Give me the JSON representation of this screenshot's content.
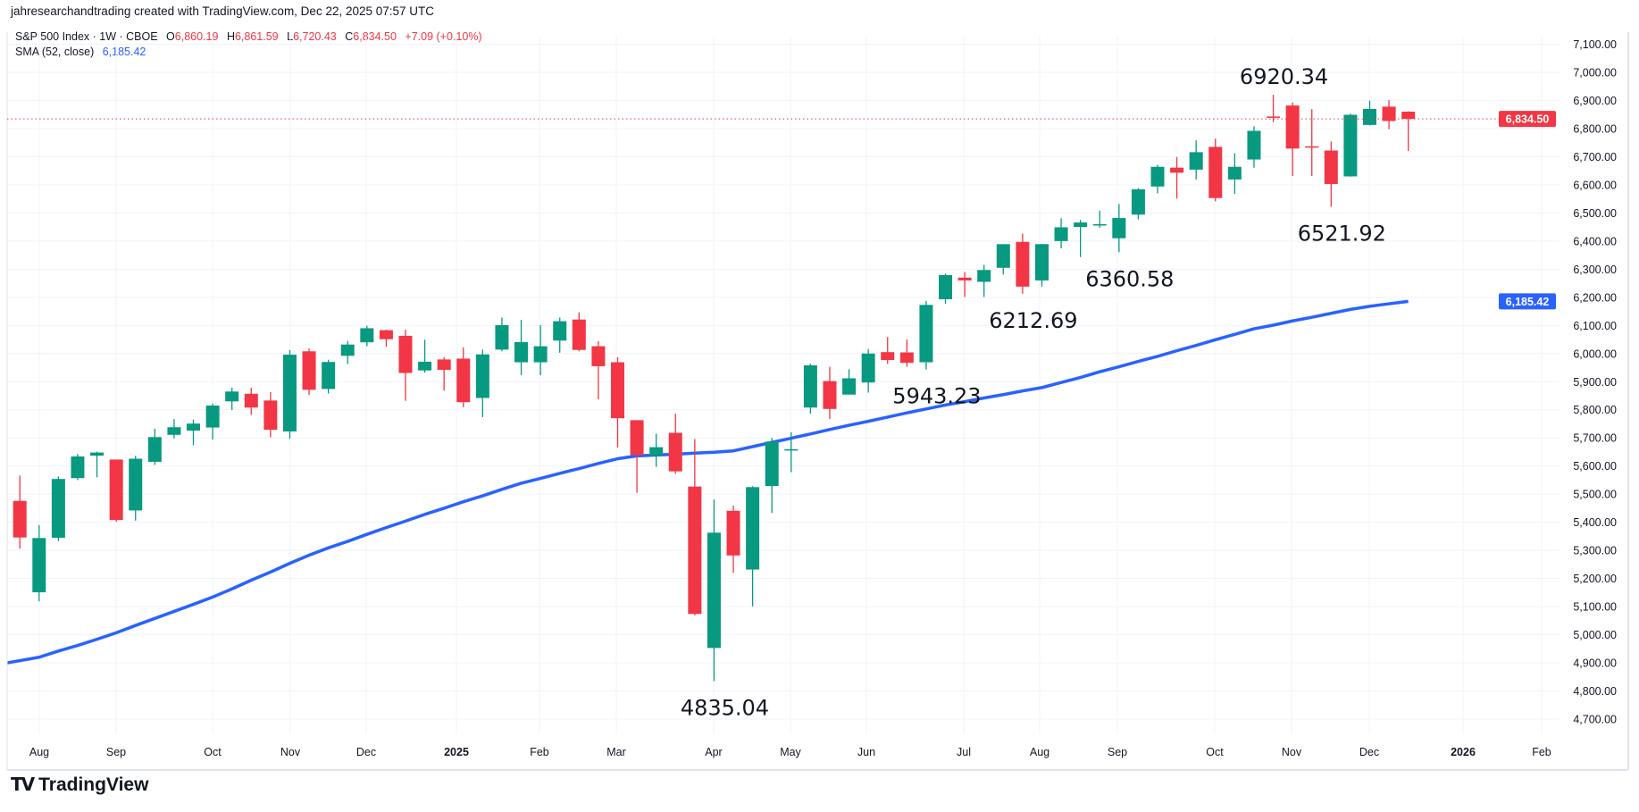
{
  "header": {
    "credit": "jahresearchandtrading created with TradingView.com, Dec 22, 2025 07:57 UTC",
    "symbol": "S&P 500 Index · 1W · CBOE",
    "ohlc": {
      "o_label": "O",
      "o": "6,860.19",
      "h_label": "H",
      "h": "6,861.59",
      "l_label": "L",
      "l": "6,720.43",
      "c_label": "C",
      "c": "6,834.50",
      "change": "+7.09 (+0.10%)"
    },
    "sma_label": "SMA (52, close)",
    "sma_value": "6,185.42"
  },
  "logo": {
    "text": "TradingView",
    "mark": "TV"
  },
  "colors": {
    "up": "#089981",
    "down": "#f23645",
    "sma": "#2962ff",
    "last_price": "#f23645"
  },
  "chart_data": {
    "type": "candlestick",
    "timeframe": "1W",
    "ylim": [
      4650,
      7150
    ],
    "grid": true,
    "y_ticks": [
      "7,100.00",
      "7,000.00",
      "6,900.00",
      "6,800.00",
      "6,700.00",
      "6,600.00",
      "6,500.00",
      "6,400.00",
      "6,300.00",
      "6,200.00",
      "6,100.00",
      "6,000.00",
      "5,900.00",
      "5,800.00",
      "5,700.00",
      "5,600.00",
      "5,500.00",
      "5,400.00",
      "5,300.00",
      "5,200.00",
      "5,100.00",
      "5,000.00",
      "4,900.00",
      "4,800.00",
      "4,700.00"
    ],
    "x_ticks": [
      "Aug",
      "Sep",
      "Oct",
      "Nov",
      "Dec",
      "2025",
      "Feb",
      "Mar",
      "Apr",
      "May",
      "Jun",
      "Jul",
      "Aug",
      "Sep",
      "Oct",
      "Nov",
      "Dec",
      "2026",
      "Feb"
    ],
    "first_week": "2024-07-29",
    "candles": [
      [
        5476,
        5566,
        5306,
        5346
      ],
      [
        5151,
        5390,
        5119,
        5344
      ],
      [
        5345,
        5563,
        5333,
        5554
      ],
      [
        5557,
        5643,
        5550,
        5634
      ],
      [
        5637,
        5651,
        5560,
        5648
      ],
      [
        5623,
        5623,
        5402,
        5408
      ],
      [
        5442,
        5636,
        5406,
        5626
      ],
      [
        5615,
        5733,
        5604,
        5703
      ],
      [
        5711,
        5767,
        5698,
        5738
      ],
      [
        5726,
        5765,
        5674,
        5751
      ],
      [
        5737,
        5822,
        5694,
        5815
      ],
      [
        5830,
        5879,
        5799,
        5865
      ],
      [
        5857,
        5878,
        5782,
        5808
      ],
      [
        5833,
        5863,
        5702,
        5729
      ],
      [
        5723,
        6012,
        5697,
        5996
      ],
      [
        6008,
        6018,
        5853,
        5871
      ],
      [
        5874,
        5978,
        5858,
        5970
      ],
      [
        5992,
        6045,
        5963,
        6032
      ],
      [
        6040,
        6099,
        6026,
        6090
      ],
      [
        6083,
        6085,
        6024,
        6051
      ],
      [
        6063,
        6085,
        5832,
        5931
      ],
      [
        5940,
        6049,
        5932,
        5971
      ],
      [
        5979,
        5987,
        5868,
        5942
      ],
      [
        5982,
        6022,
        5809,
        5827
      ],
      [
        5842,
        6014,
        5774,
        5997
      ],
      [
        6014,
        6128,
        6008,
        6101
      ],
      [
        5969,
        6120,
        5923,
        6041
      ],
      [
        5969,
        6101,
        5923,
        6026
      ],
      [
        6046,
        6128,
        6003,
        6115
      ],
      [
        6121,
        6147,
        6008,
        6013
      ],
      [
        6026,
        6044,
        5837,
        5955
      ],
      [
        5969,
        5987,
        5666,
        5770
      ],
      [
        5763,
        5763,
        5505,
        5639
      ],
      [
        5637,
        5715,
        5597,
        5667
      ],
      [
        5718,
        5786,
        5572,
        5581
      ],
      [
        5527,
        5696,
        5069,
        5074
      ],
      [
        4953,
        5481,
        4835.04,
        5363
      ],
      [
        5441,
        5459,
        5220,
        5282
      ],
      [
        5232,
        5528,
        5101,
        5525
      ],
      [
        5529,
        5700,
        5433,
        5687
      ],
      [
        5655,
        5720,
        5578,
        5660
      ],
      [
        5808,
        5964,
        5786,
        5958
      ],
      [
        5902,
        5953,
        5767,
        5803
      ],
      [
        5854,
        5944,
        5856,
        5912
      ],
      [
        5897,
        6016,
        5861,
        6000
      ],
      [
        6005,
        6059,
        5963,
        5977
      ],
      [
        6004,
        6050,
        5953,
        5967
      ],
      [
        5969,
        6187,
        5943.23,
        6173
      ],
      [
        6193,
        6284,
        6177,
        6279
      ],
      [
        6270,
        6290,
        6201,
        6260
      ],
      [
        6255,
        6315,
        6201,
        6297
      ],
      [
        6305,
        6389,
        6281,
        6389
      ],
      [
        6397,
        6427,
        6212.69,
        6238
      ],
      [
        6260,
        6390,
        6238,
        6389
      ],
      [
        6400,
        6481,
        6374,
        6449
      ],
      [
        6450,
        6475,
        6343,
        6466
      ],
      [
        6457,
        6508,
        6447,
        6460
      ],
      [
        6410,
        6532,
        6360.58,
        6482
      ],
      [
        6494,
        6588,
        6477,
        6584
      ],
      [
        6594,
        6671,
        6570,
        6664
      ],
      [
        6661,
        6699,
        6551,
        6643
      ],
      [
        6654,
        6758,
        6619,
        6716
      ],
      [
        6735,
        6764,
        6541,
        6553
      ],
      [
        6619,
        6712,
        6568,
        6664
      ],
      [
        6690,
        6808,
        6661,
        6792
      ],
      [
        6843,
        6920.34,
        6823,
        6840
      ],
      [
        6882,
        6893,
        6631,
        6729
      ],
      [
        6737,
        6869,
        6631,
        6734
      ],
      [
        6722,
        6754,
        6521.92,
        6603
      ],
      [
        6630,
        6853,
        6629,
        6849
      ],
      [
        6813,
        6899,
        6811,
        6870
      ],
      [
        6878,
        6901,
        6798,
        6827
      ],
      [
        6860.19,
        6861.59,
        6720.43,
        6834.5
      ]
    ],
    "sma": {
      "name": "SMA (52, close)",
      "values": [
        4900,
        4920,
        4942,
        4962,
        4984,
        5007,
        5033,
        5058,
        5083,
        5108,
        5134,
        5163,
        5194,
        5223,
        5254,
        5283,
        5309,
        5332,
        5357,
        5381,
        5404,
        5428,
        5450,
        5473,
        5494,
        5517,
        5539,
        5556,
        5574,
        5591,
        5609,
        5626,
        5636,
        5639,
        5642,
        5646,
        5649,
        5654,
        5669,
        5684,
        5699,
        5714,
        5730,
        5745,
        5759,
        5774,
        5789,
        5803,
        5817,
        5829,
        5842,
        5854,
        5867,
        5879,
        5897,
        5915,
        5935,
        5953,
        5972,
        5990,
        6010,
        6029,
        6049,
        6068,
        6088,
        6101,
        6116,
        6129,
        6143,
        6157,
        6168,
        6177,
        6185.42
      ]
    },
    "last_price": {
      "value": 6834.5,
      "label": "6,834.50"
    },
    "sma_last": {
      "value": 6185.42,
      "label": "6,185.42"
    },
    "annotations": [
      {
        "text": "6920.34",
        "week_index": 65,
        "price": 6920.34,
        "side": "above"
      },
      {
        "text": "6521.92",
        "week_index": 68,
        "price": 6521.92,
        "side": "below"
      },
      {
        "text": "6360.58",
        "week_index": 57,
        "price": 6360.58,
        "side": "below"
      },
      {
        "text": "6212.69",
        "week_index": 52,
        "price": 6212.69,
        "side": "below"
      },
      {
        "text": "5943.23",
        "week_index": 47,
        "price": 5943.23,
        "side": "below"
      },
      {
        "text": "4835.04",
        "week_index": 36,
        "price": 4835.04,
        "side": "below"
      }
    ]
  }
}
